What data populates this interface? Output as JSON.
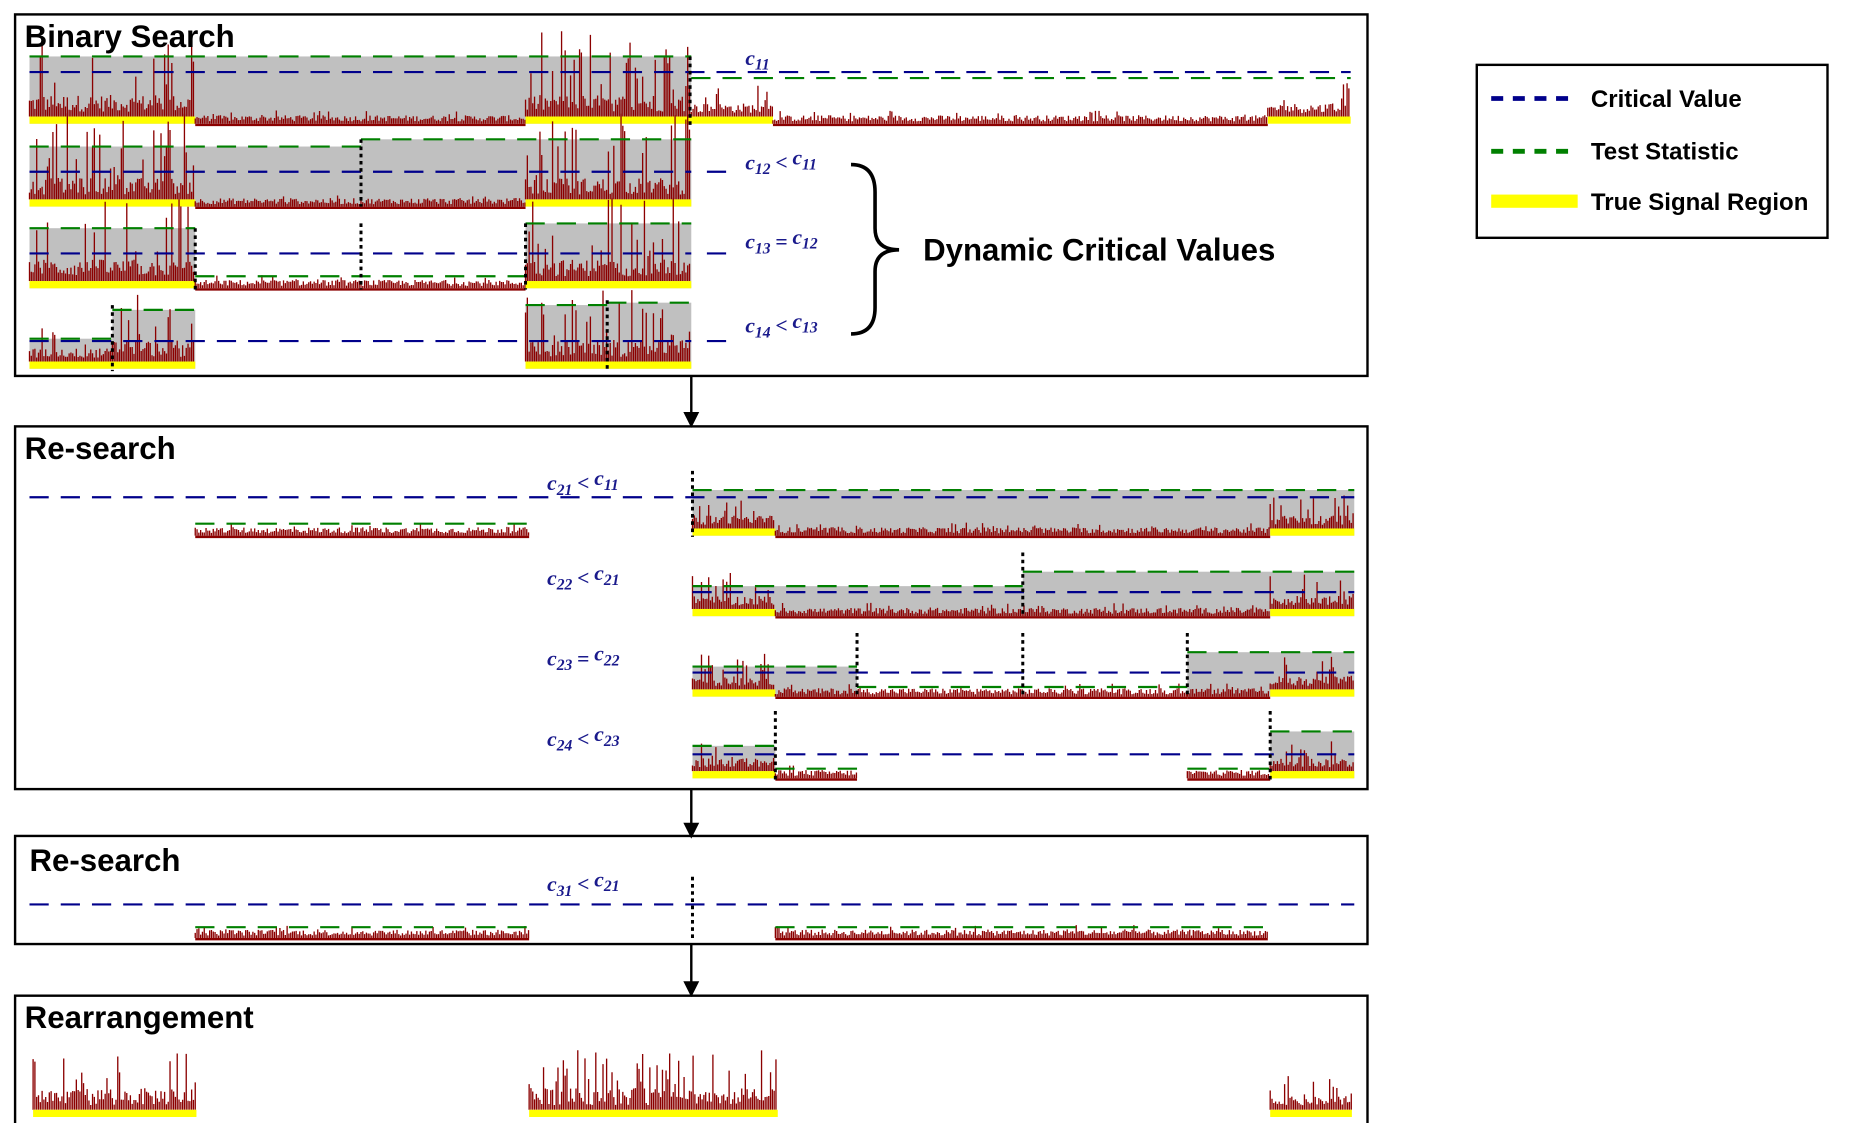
{
  "panels": [
    {
      "title": "Binary Search"
    },
    {
      "title": "Re-search"
    },
    {
      "title": "Re-search"
    },
    {
      "title": "Rearrangement"
    }
  ],
  "labels": {
    "c11": {
      "a": "c",
      "as": "11"
    },
    "c12": {
      "a": "c",
      "as": "12",
      "op": "<",
      "b": "c",
      "bs": "11"
    },
    "c13": {
      "a": "c",
      "as": "13",
      "op": "=",
      "b": "c",
      "bs": "12"
    },
    "c14": {
      "a": "c",
      "as": "14",
      "op": "<",
      "b": "c",
      "bs": "13"
    },
    "c21": {
      "a": "c",
      "as": "21",
      "op": "<",
      "b": "c",
      "bs": "11"
    },
    "c22": {
      "a": "c",
      "as": "22",
      "op": "<",
      "b": "c",
      "bs": "21"
    },
    "c23": {
      "a": "c",
      "as": "23",
      "op": "=",
      "b": "c",
      "bs": "22"
    },
    "c24": {
      "a": "c",
      "as": "24",
      "op": "<",
      "b": "c",
      "bs": "23"
    },
    "c31": {
      "a": "c",
      "as": "31",
      "op": "<",
      "b": "c",
      "bs": "21"
    }
  },
  "annotation": "Dynamic Critical Values",
  "legend": {
    "items": [
      {
        "label": "Critical Value",
        "color": "#00008b"
      },
      {
        "label": "Test Statistic",
        "color": "#008000"
      },
      {
        "label": "True Signal Region",
        "color": "#ffff00"
      }
    ]
  },
  "colors": {
    "bars": "#8b0000",
    "shade": "#c0c0c0"
  }
}
